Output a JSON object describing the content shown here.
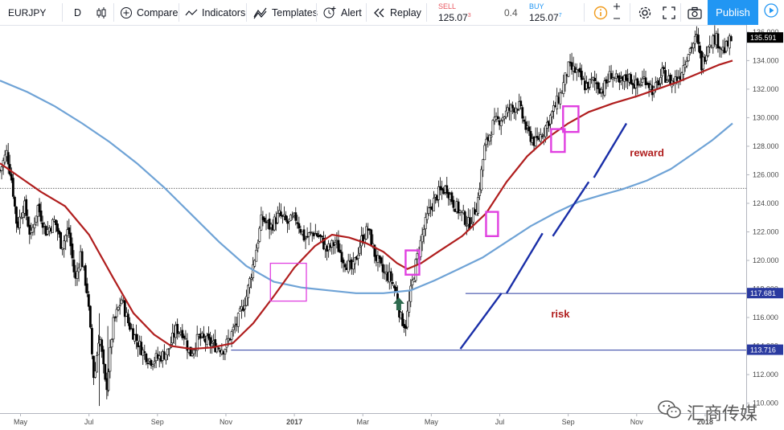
{
  "toolbar": {
    "symbol": "EURJPY",
    "interval": "D",
    "compare": "Compare",
    "indicators": "Indicators",
    "templates": "Templates",
    "alert": "Alert",
    "replay": "Replay",
    "sell_label": "SELL",
    "sell_price": "125.07",
    "sell_sup": "3",
    "spread": "0.4",
    "buy_label": "BUY",
    "buy_price": "125.07",
    "buy_sup": "7",
    "publish": "Publish",
    "icons": [
      "candles-icon",
      "plus-circle-icon",
      "indicators-icon",
      "templates-icon",
      "alert-icon",
      "replay-icon",
      "info-icon",
      "plus-icon",
      "minus-icon",
      "gear-icon",
      "fullscreen-icon",
      "camera-icon",
      "play-icon"
    ]
  },
  "colors": {
    "candle": "#000000",
    "ma_fast": "#b01e1e",
    "ma_slow": "#6fa3d6",
    "box": "#e040e0",
    "trend": "#1a2fa8",
    "level": "#2a3aa0",
    "arrow": "#2e6b4f",
    "annotation": "#b01e1e",
    "sell": "#e8555e",
    "buy": "#2196f3"
  },
  "chart_data": {
    "type": "candlestick",
    "symbol": "EURJPY",
    "interval": "D",
    "ylim": [
      109.3,
      136.5
    ],
    "y_ticks": [
      "136.000",
      "134.000",
      "132.000",
      "130.000",
      "128.000",
      "126.000",
      "124.000",
      "122.000",
      "120.000",
      "118.000",
      "116.000",
      "114.000",
      "112.000",
      "110.000"
    ],
    "x_ticks": [
      "May",
      "Jul",
      "Sep",
      "Nov",
      "2017",
      "Mar",
      "May",
      "Jul",
      "Sep",
      "Nov",
      "2018"
    ],
    "x_tick_months": [
      4,
      6,
      8,
      10,
      12,
      14,
      16,
      18,
      20,
      22,
      24
    ],
    "x_range_months": [
      3.4,
      25.2
    ],
    "price_labels": [
      {
        "text": "135.591",
        "value": 135.591
      },
      {
        "text": "117.681",
        "value": 117.681
      },
      {
        "text": "113.716",
        "value": 113.716
      }
    ],
    "price_path": [
      [
        3.4,
        126.3
      ],
      [
        3.6,
        127.6
      ],
      [
        3.75,
        125.5
      ],
      [
        3.9,
        122.3
      ],
      [
        4.1,
        124.0
      ],
      [
        4.3,
        121.6
      ],
      [
        4.5,
        123.8
      ],
      [
        4.75,
        122.0
      ],
      [
        5.0,
        122.8
      ],
      [
        5.2,
        121.0
      ],
      [
        5.4,
        122.2
      ],
      [
        5.6,
        118.5
      ],
      [
        5.75,
        120.5
      ],
      [
        5.95,
        117.8
      ],
      [
        6.15,
        111.5
      ],
      [
        6.3,
        115.0
      ],
      [
        6.5,
        110.8
      ],
      [
        6.7,
        115.5
      ],
      [
        6.95,
        117.3
      ],
      [
        7.15,
        115.6
      ],
      [
        7.35,
        114.6
      ],
      [
        7.6,
        113.5
      ],
      [
        7.8,
        113.0
      ],
      [
        8.05,
        113.2
      ],
      [
        8.3,
        113.6
      ],
      [
        8.55,
        115.2
      ],
      [
        8.75,
        115.0
      ],
      [
        8.95,
        113.4
      ],
      [
        9.2,
        114.6
      ],
      [
        9.45,
        114.3
      ],
      [
        9.7,
        114.0
      ],
      [
        9.95,
        113.8
      ],
      [
        10.15,
        114.8
      ],
      [
        10.35,
        115.8
      ],
      [
        10.6,
        117.5
      ],
      [
        10.85,
        120.3
      ],
      [
        11.05,
        123.0
      ],
      [
        11.3,
        122.3
      ],
      [
        11.55,
        123.2
      ],
      [
        11.8,
        122.6
      ],
      [
        12.05,
        123.0
      ],
      [
        12.3,
        121.5
      ],
      [
        12.55,
        122.0
      ],
      [
        12.75,
        121.6
      ],
      [
        12.95,
        120.7
      ],
      [
        13.2,
        121.3
      ],
      [
        13.45,
        120.0
      ],
      [
        13.7,
        119.3
      ],
      [
        13.95,
        121.4
      ],
      [
        14.15,
        122.2
      ],
      [
        14.35,
        120.4
      ],
      [
        14.6,
        119.1
      ],
      [
        14.8,
        118.8
      ],
      [
        14.95,
        117.9
      ],
      [
        15.1,
        116.0
      ],
      [
        15.25,
        115.4
      ],
      [
        15.4,
        117.8
      ],
      [
        15.55,
        119.8
      ],
      [
        15.75,
        121.9
      ],
      [
        15.95,
        123.6
      ],
      [
        16.2,
        124.7
      ],
      [
        16.45,
        125.1
      ],
      [
        16.65,
        124.0
      ],
      [
        16.9,
        123.2
      ],
      [
        17.1,
        122.5
      ],
      [
        17.35,
        124.0
      ],
      [
        17.55,
        127.8
      ],
      [
        17.8,
        129.5
      ],
      [
        18.05,
        130.0
      ],
      [
        18.3,
        130.6
      ],
      [
        18.55,
        130.9
      ],
      [
        18.8,
        129.0
      ],
      [
        19.05,
        128.2
      ],
      [
        19.3,
        129.2
      ],
      [
        19.55,
        130.4
      ],
      [
        19.8,
        131.8
      ],
      [
        20.0,
        133.5
      ],
      [
        20.25,
        133.2
      ],
      [
        20.5,
        132.2
      ],
      [
        20.75,
        132.6
      ],
      [
        21.0,
        131.9
      ],
      [
        21.25,
        133.1
      ],
      [
        21.5,
        132.3
      ],
      [
        21.75,
        132.9
      ],
      [
        22.0,
        132.2
      ],
      [
        22.25,
        132.8
      ],
      [
        22.5,
        131.8
      ],
      [
        22.75,
        133.1
      ],
      [
        23.0,
        132.5
      ],
      [
        23.25,
        132.9
      ],
      [
        23.5,
        134.6
      ],
      [
        23.75,
        135.6
      ],
      [
        23.9,
        133.6
      ],
      [
        24.1,
        135.3
      ],
      [
        24.3,
        135.6
      ],
      [
        24.55,
        134.7
      ],
      [
        24.8,
        135.6
      ]
    ],
    "ma_fast": [
      [
        3.4,
        126.8
      ],
      [
        4.0,
        125.8
      ],
      [
        4.6,
        124.8
      ],
      [
        5.3,
        123.8
      ],
      [
        6.0,
        121.8
      ],
      [
        6.7,
        118.8
      ],
      [
        7.3,
        116.3
      ],
      [
        7.9,
        114.8
      ],
      [
        8.4,
        114.0
      ],
      [
        9.0,
        113.8
      ],
      [
        9.6,
        113.9
      ],
      [
        10.2,
        114.2
      ],
      [
        10.8,
        115.6
      ],
      [
        11.4,
        117.5
      ],
      [
        12.0,
        119.5
      ],
      [
        12.6,
        121.0
      ],
      [
        13.1,
        121.8
      ],
      [
        13.6,
        121.6
      ],
      [
        14.1,
        121.2
      ],
      [
        14.6,
        120.6
      ],
      [
        15.0,
        119.8
      ],
      [
        15.3,
        119.4
      ],
      [
        15.7,
        119.8
      ],
      [
        16.2,
        120.6
      ],
      [
        16.9,
        121.7
      ],
      [
        17.6,
        123.3
      ],
      [
        18.2,
        125.5
      ],
      [
        18.8,
        127.3
      ],
      [
        19.4,
        128.6
      ],
      [
        20.0,
        129.6
      ],
      [
        20.6,
        130.4
      ],
      [
        21.3,
        131.0
      ],
      [
        22.0,
        131.5
      ],
      [
        22.6,
        132.0
      ],
      [
        23.2,
        132.5
      ],
      [
        23.8,
        133.1
      ],
      [
        24.4,
        133.7
      ],
      [
        24.8,
        134.0
      ]
    ],
    "ma_slow": [
      [
        3.4,
        132.6
      ],
      [
        4.2,
        131.8
      ],
      [
        5.0,
        130.8
      ],
      [
        5.8,
        129.6
      ],
      [
        6.6,
        128.3
      ],
      [
        7.4,
        126.8
      ],
      [
        8.2,
        125.1
      ],
      [
        9.0,
        123.2
      ],
      [
        9.8,
        121.3
      ],
      [
        10.6,
        119.6
      ],
      [
        11.4,
        118.5
      ],
      [
        12.2,
        118.1
      ],
      [
        13.0,
        117.9
      ],
      [
        13.8,
        117.7
      ],
      [
        14.6,
        117.7
      ],
      [
        15.4,
        117.9
      ],
      [
        16.1,
        118.6
      ],
      [
        16.8,
        119.4
      ],
      [
        17.5,
        120.2
      ],
      [
        18.2,
        121.3
      ],
      [
        18.9,
        122.4
      ],
      [
        19.6,
        123.3
      ],
      [
        20.3,
        124.1
      ],
      [
        21.0,
        124.6
      ],
      [
        21.6,
        125.0
      ],
      [
        22.3,
        125.6
      ],
      [
        23.0,
        126.4
      ],
      [
        23.6,
        127.4
      ],
      [
        24.2,
        128.4
      ],
      [
        24.8,
        129.6
      ]
    ],
    "ref_lines": [
      {
        "value": 125.05,
        "from_month": 3.4,
        "to_month": 25.2,
        "style": "dotted"
      },
      {
        "value": 117.681,
        "from_month": 17.0,
        "to_month": 25.2,
        "style": "solid"
      },
      {
        "value": 113.716,
        "from_month": 10.15,
        "to_month": 25.2,
        "style": "solid"
      }
    ],
    "boxes": [
      {
        "m0": 11.3,
        "m1": 12.35,
        "p_low": 117.15,
        "p_high": 119.8
      },
      {
        "m0": 15.25,
        "m1": 15.65,
        "p_low": 119.0,
        "p_high": 120.7
      },
      {
        "m0": 17.6,
        "m1": 17.95,
        "p_low": 121.7,
        "p_high": 123.4
      },
      {
        "m0": 19.5,
        "m1": 19.9,
        "p_low": 127.6,
        "p_high": 129.2
      },
      {
        "m0": 19.85,
        "m1": 20.3,
        "p_low": 129.0,
        "p_high": 130.8
      }
    ],
    "trend_lines": [
      [
        [
          16.85,
          113.8
        ],
        [
          18.05,
          117.7
        ]
      ],
      [
        [
          18.2,
          117.7
        ],
        [
          19.25,
          121.9
        ]
      ],
      [
        [
          19.55,
          121.7
        ],
        [
          20.6,
          125.5
        ]
      ],
      [
        [
          20.75,
          125.8
        ],
        [
          21.7,
          129.6
        ]
      ]
    ],
    "arrow": {
      "month": 15.05,
      "value": 116.9
    },
    "annotations": [
      {
        "text": "reward",
        "month": 21.8,
        "value": 127.3
      },
      {
        "text": "risk",
        "month": 19.5,
        "value": 116.0
      }
    ]
  },
  "watermark": {
    "text": "汇商传媒",
    "icon": "wechat-icon"
  }
}
